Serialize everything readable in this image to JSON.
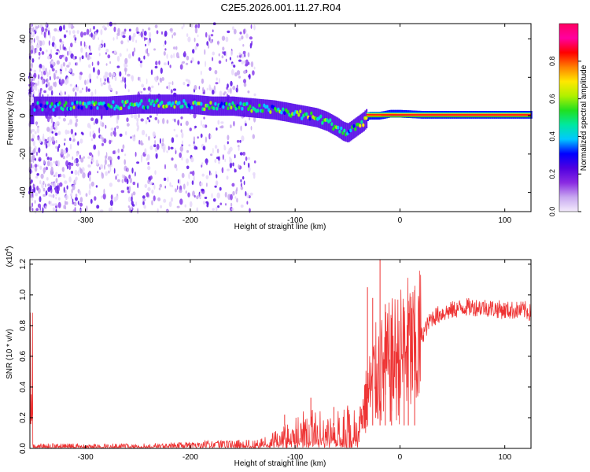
{
  "title": "C2E5.2026.001.11.27.R04",
  "chart_data": [
    {
      "type": "heatmap",
      "name": "spectrogram",
      "xlabel": "Height of straight line (km)",
      "ylabel": "Frequency (Hz)",
      "xlim": [
        -353,
        125
      ],
      "ylim": [
        -50,
        48
      ],
      "xticks": [
        -300,
        -200,
        -100,
        0,
        100
      ],
      "yticks": [
        -40,
        -20,
        0,
        20,
        40
      ],
      "colorbar": {
        "label": "Normalized spectral amplitude",
        "range": [
          0.0,
          1.0
        ],
        "ticks": [
          "0.0",
          "0.2",
          "0.4",
          "0.6",
          "0.8"
        ],
        "tick_values": [
          0.0,
          0.2,
          0.4,
          0.6,
          0.8
        ],
        "colors": [
          "#f4ecfc",
          "#c8a8f0",
          "#8a2be2",
          "#5000e0",
          "#0000ff",
          "#00c8ff",
          "#00e8a0",
          "#20e020",
          "#b0f000",
          "#ffe800",
          "#ff8000",
          "#ff0000",
          "#ff00a0",
          "#ff0060"
        ]
      },
      "ridge": {
        "x": [
          -350,
          -320,
          -300,
          -280,
          -250,
          -220,
          -200,
          -180,
          -160,
          -140,
          -120,
          -100,
          -90,
          -80,
          -70,
          -60,
          -55,
          -50,
          -45,
          -40,
          -35,
          -30,
          -20,
          -10,
          0,
          20,
          50,
          80,
          100,
          120
        ],
        "freq": [
          5,
          5,
          5,
          5,
          6,
          6,
          6,
          5,
          5,
          4,
          3,
          1,
          0,
          -1,
          -3,
          -6,
          -8,
          -9,
          -7,
          -5,
          -3,
          0,
          0,
          1,
          1,
          0.5,
          0.5,
          0.5,
          0.5,
          0.5
        ],
        "amplitude": [
          0.3,
          0.45,
          0.45,
          0.45,
          0.5,
          0.5,
          0.45,
          0.5,
          0.45,
          0.45,
          0.45,
          0.5,
          0.5,
          0.5,
          0.5,
          0.5,
          0.45,
          0.4,
          0.45,
          0.5,
          0.55,
          0.75,
          0.8,
          0.85,
          0.9,
          0.95,
          0.95,
          0.95,
          0.95,
          0.95
        ]
      }
    },
    {
      "type": "line",
      "name": "snr",
      "xlabel": "Height of straight line (km)",
      "ylabel": "SNR (10 * v/v)",
      "scale_note": "(x10",
      "scale_exp": "4",
      "scale_close": ")",
      "xlim": [
        -353,
        125
      ],
      "ylim": [
        0.0,
        1.23
      ],
      "xticks": [
        -300,
        -200,
        -100,
        0,
        100
      ],
      "yticks": [
        0.0,
        0.2,
        0.4,
        0.6,
        0.8,
        1.0,
        1.2
      ],
      "ytick_labels": [
        "0.0",
        "0.2",
        "0.4",
        "0.6",
        "0.8",
        "1.0",
        "1.2"
      ],
      "series": [
        {
          "name": "SNR",
          "color": "#ee3333",
          "x": [
            -350,
            -300,
            -250,
            -200,
            -180,
            -160,
            -150,
            -140,
            -120,
            -100,
            -90,
            -80,
            -70,
            -60,
            -50,
            -45,
            -40,
            -35,
            -30,
            -25,
            -20,
            -15,
            -10,
            -5,
            0,
            5,
            10,
            15,
            20,
            30,
            40,
            50,
            60,
            80,
            100,
            120,
            125
          ],
          "y": [
            0.02,
            0.02,
            0.02,
            0.03,
            0.04,
            0.04,
            0.03,
            0.04,
            0.07,
            0.12,
            0.15,
            0.16,
            0.14,
            0.15,
            0.17,
            0.16,
            0.14,
            0.25,
            0.35,
            0.45,
            0.5,
            0.5,
            0.55,
            0.58,
            0.6,
            0.65,
            0.65,
            0.6,
            0.72,
            0.85,
            0.88,
            0.9,
            0.92,
            0.92,
            0.9,
            0.9,
            0.88
          ],
          "spikes": [
            {
              "x": -31,
              "y": 1.05
            },
            {
              "x": -26,
              "y": 0.98
            },
            {
              "x": -19,
              "y": 1.23
            },
            {
              "x": -14,
              "y": 0.94
            },
            {
              "x": -8,
              "y": 0.85
            },
            {
              "x": 4,
              "y": 0.92
            },
            {
              "x": 8,
              "y": 0.96
            },
            {
              "x": 14,
              "y": 1.03
            },
            {
              "x": -85,
              "y": 0.33
            },
            {
              "x": -63,
              "y": 0.27
            },
            {
              "x": -110,
              "y": 0.22
            }
          ]
        }
      ]
    }
  ]
}
